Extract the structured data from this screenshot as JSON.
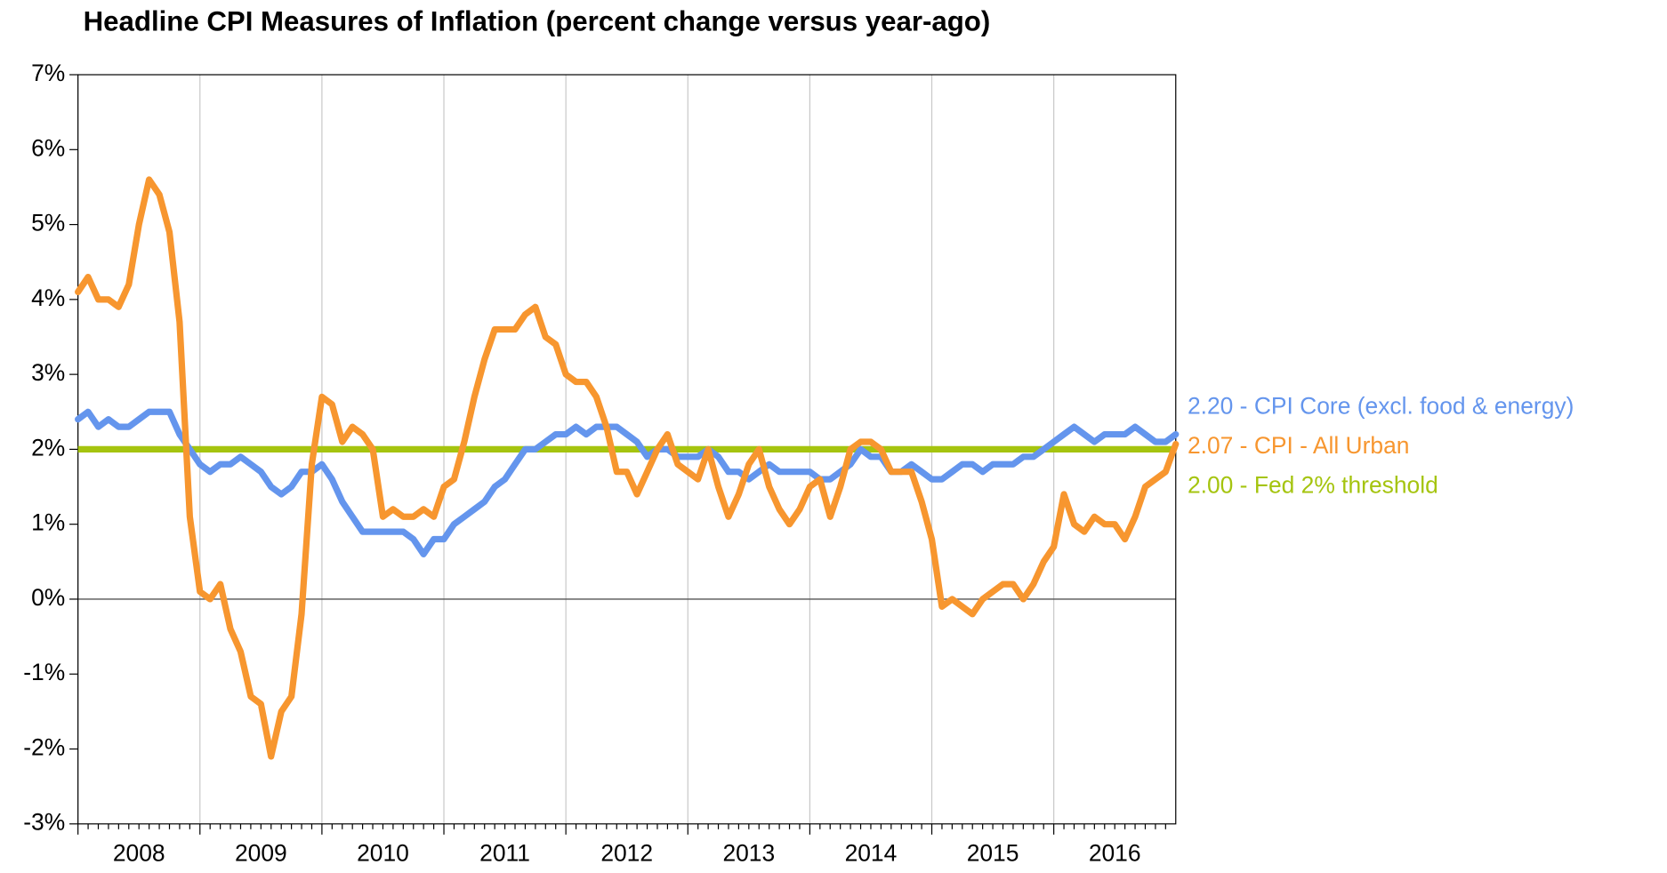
{
  "chart_data": {
    "type": "line",
    "title": "Headline CPI Measures of Inflation (percent change versus year-ago)",
    "xlim": [
      2008,
      2017
    ],
    "xticks": [
      {
        "value": 2008,
        "label": "2008"
      },
      {
        "value": 2009,
        "label": "2009"
      },
      {
        "value": 2010,
        "label": "2010"
      },
      {
        "value": 2011,
        "label": "2011"
      },
      {
        "value": 2012,
        "label": "2012"
      },
      {
        "value": 2013,
        "label": "2013"
      },
      {
        "value": 2014,
        "label": "2014"
      },
      {
        "value": 2015,
        "label": "2015"
      },
      {
        "value": 2016,
        "label": "2016"
      }
    ],
    "ylim": [
      -3,
      7
    ],
    "yticks": [
      {
        "value": -3,
        "label": "-3%"
      },
      {
        "value": -2,
        "label": "-2%"
      },
      {
        "value": -1,
        "label": "-1%"
      },
      {
        "value": 0,
        "label": "0%"
      },
      {
        "value": 1,
        "label": "1%"
      },
      {
        "value": 2,
        "label": "2%"
      },
      {
        "value": 3,
        "label": "3%"
      },
      {
        "value": 4,
        "label": "4%"
      },
      {
        "value": 5,
        "label": "5%"
      },
      {
        "value": 6,
        "label": "6%"
      },
      {
        "value": 7,
        "label": "7%"
      }
    ],
    "grid": true,
    "x": [
      2008,
      2008.083,
      2008.167,
      2008.25,
      2008.333,
      2008.417,
      2008.5,
      2008.583,
      2008.667,
      2008.75,
      2008.833,
      2008.917,
      2009,
      2009.083,
      2009.167,
      2009.25,
      2009.333,
      2009.417,
      2009.5,
      2009.583,
      2009.667,
      2009.75,
      2009.833,
      2009.917,
      2010,
      2010.083,
      2010.167,
      2010.25,
      2010.333,
      2010.417,
      2010.5,
      2010.583,
      2010.667,
      2010.75,
      2010.833,
      2010.917,
      2011,
      2011.083,
      2011.167,
      2011.25,
      2011.333,
      2011.417,
      2011.5,
      2011.583,
      2011.667,
      2011.75,
      2011.833,
      2011.917,
      2012,
      2012.083,
      2012.167,
      2012.25,
      2012.333,
      2012.417,
      2012.5,
      2012.583,
      2012.667,
      2012.75,
      2012.833,
      2012.917,
      2013,
      2013.083,
      2013.167,
      2013.25,
      2013.333,
      2013.417,
      2013.5,
      2013.583,
      2013.667,
      2013.75,
      2013.833,
      2013.917,
      2014,
      2014.083,
      2014.167,
      2014.25,
      2014.333,
      2014.417,
      2014.5,
      2014.583,
      2014.667,
      2014.75,
      2014.833,
      2014.917,
      2015,
      2015.083,
      2015.167,
      2015.25,
      2015.333,
      2015.417,
      2015.5,
      2015.583,
      2015.667,
      2015.75,
      2015.833,
      2015.917,
      2016,
      2016.083,
      2016.167,
      2016.25,
      2016.333,
      2016.417,
      2016.5,
      2016.583,
      2016.667,
      2016.75,
      2016.833,
      2016.917,
      2017
    ],
    "series": [
      {
        "name": "2.20 - CPI Core (excl. food & energy)",
        "color": "#6495ed",
        "values": [
          2.4,
          2.5,
          2.3,
          2.4,
          2.3,
          2.3,
          2.4,
          2.5,
          2.5,
          2.5,
          2.2,
          2.0,
          1.8,
          1.7,
          1.8,
          1.8,
          1.9,
          1.8,
          1.7,
          1.5,
          1.4,
          1.5,
          1.7,
          1.7,
          1.8,
          1.6,
          1.3,
          1.1,
          0.9,
          0.9,
          0.9,
          0.9,
          0.9,
          0.8,
          0.6,
          0.8,
          0.8,
          1.0,
          1.1,
          1.2,
          1.3,
          1.5,
          1.6,
          1.8,
          2.0,
          2.0,
          2.1,
          2.2,
          2.2,
          2.3,
          2.2,
          2.3,
          2.3,
          2.3,
          2.2,
          2.1,
          1.9,
          2.0,
          2.0,
          1.9,
          1.9,
          1.9,
          2.0,
          1.9,
          1.7,
          1.7,
          1.6,
          1.7,
          1.8,
          1.7,
          1.7,
          1.7,
          1.7,
          1.6,
          1.6,
          1.7,
          1.8,
          2.0,
          1.9,
          1.9,
          1.7,
          1.7,
          1.8,
          1.7,
          1.6,
          1.6,
          1.7,
          1.8,
          1.8,
          1.7,
          1.8,
          1.8,
          1.8,
          1.9,
          1.9,
          2.0,
          2.1,
          2.2,
          2.3,
          2.2,
          2.1,
          2.2,
          2.2,
          2.2,
          2.3,
          2.2,
          2.1,
          2.1,
          2.2
        ]
      },
      {
        "name": "2.07 - CPI - All Urban",
        "color": "#f7962f",
        "values": [
          4.1,
          4.3,
          4.0,
          4.0,
          3.9,
          4.2,
          5.0,
          5.6,
          5.4,
          4.9,
          3.7,
          1.1,
          0.1,
          0.0,
          0.2,
          -0.4,
          -0.7,
          -1.3,
          -1.4,
          -2.1,
          -1.5,
          -1.3,
          -0.2,
          1.8,
          2.7,
          2.6,
          2.1,
          2.3,
          2.2,
          2.0,
          1.1,
          1.2,
          1.1,
          1.1,
          1.2,
          1.1,
          1.5,
          1.6,
          2.1,
          2.7,
          3.2,
          3.6,
          3.6,
          3.6,
          3.8,
          3.9,
          3.5,
          3.4,
          3.0,
          2.9,
          2.9,
          2.7,
          2.3,
          1.7,
          1.7,
          1.4,
          1.7,
          2.0,
          2.2,
          1.8,
          1.7,
          1.6,
          2.0,
          1.5,
          1.1,
          1.4,
          1.8,
          2.0,
          1.5,
          1.2,
          1.0,
          1.2,
          1.5,
          1.6,
          1.1,
          1.5,
          2.0,
          2.1,
          2.1,
          2.0,
          1.7,
          1.7,
          1.7,
          1.3,
          0.8,
          -0.1,
          0.0,
          -0.1,
          -0.2,
          0.0,
          0.1,
          0.2,
          0.2,
          0.0,
          0.2,
          0.5,
          0.7,
          1.4,
          1.0,
          0.9,
          1.1,
          1.0,
          1.0,
          0.8,
          1.1,
          1.5,
          1.6,
          1.7,
          2.07
        ]
      }
    ],
    "reference_lines": [
      {
        "name": "2.00 - Fed 2% threshold",
        "color": "#a5c40f",
        "value": 2
      }
    ]
  }
}
